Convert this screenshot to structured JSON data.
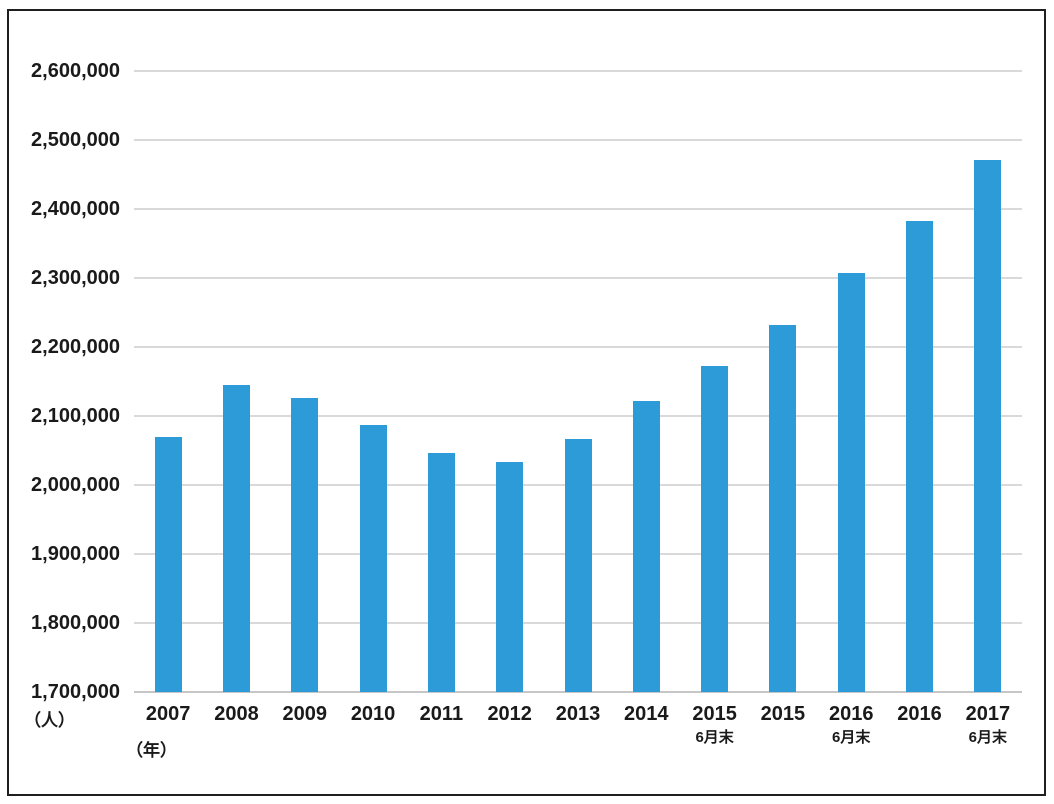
{
  "chart_data": {
    "type": "bar",
    "title": "",
    "xlabel": "",
    "ylabel": "",
    "y_unit": "（人）",
    "x_unit": "（年）",
    "ylim": [
      1700000,
      2600000
    ],
    "ytick_step": 100000,
    "ytick_labels": [
      "1,700,000",
      "1,800,000",
      "1,900,000",
      "2,000,000",
      "2,100,000",
      "2,200,000",
      "2,300,000",
      "2,400,000",
      "2,500,000",
      "2,600,000"
    ],
    "grid": "horizontal",
    "legend": "none",
    "bar_color": "#2d9bd8",
    "gridline_color": "#d9d9d9",
    "axis_line_color": "#c6c6c6",
    "frame_color": "#1f1f1f",
    "categories": [
      {
        "label": "2007",
        "sublabel": ""
      },
      {
        "label": "2008",
        "sublabel": ""
      },
      {
        "label": "2009",
        "sublabel": ""
      },
      {
        "label": "2010",
        "sublabel": ""
      },
      {
        "label": "2011",
        "sublabel": ""
      },
      {
        "label": "2012",
        "sublabel": ""
      },
      {
        "label": "2013",
        "sublabel": ""
      },
      {
        "label": "2014",
        "sublabel": ""
      },
      {
        "label": "2015",
        "sublabel": "6月末"
      },
      {
        "label": "2015",
        "sublabel": ""
      },
      {
        "label": "2016",
        "sublabel": "6月末"
      },
      {
        "label": "2016",
        "sublabel": ""
      },
      {
        "label": "2017",
        "sublabel": "6月末"
      }
    ],
    "values": [
      2069000,
      2145000,
      2126000,
      2087000,
      2047000,
      2034000,
      2066000,
      2122000,
      2173000,
      2232000,
      2307000,
      2383000,
      2471000
    ]
  }
}
